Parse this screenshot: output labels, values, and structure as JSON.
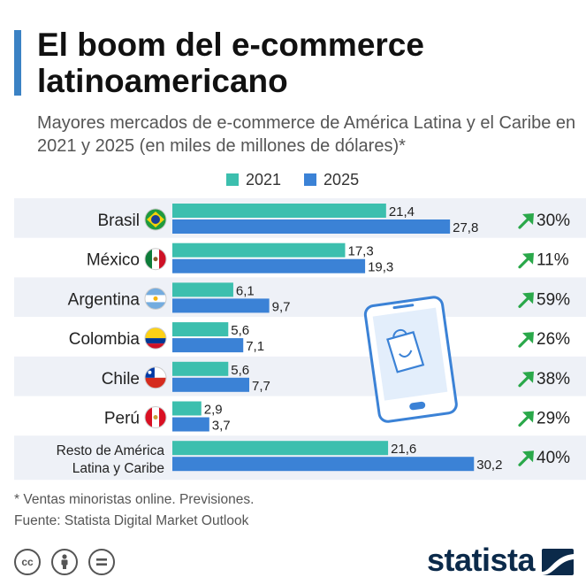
{
  "header": {
    "title": "El boom del e-commerce latinoamericano",
    "subtitle": "Mayores mercados de e-commerce de América Latina y el Caribe en 2021 y 2025 (en miles de millones de dólares)*"
  },
  "colors": {
    "series_2021": "#3cbfae",
    "series_2025": "#3b82d6",
    "row_band": "#eef1f7",
    "growth_arrow": "#2aa84a",
    "accent": "#3b82c4"
  },
  "chart_data": {
    "type": "bar",
    "orientation": "horizontal",
    "categories": [
      "Brasil",
      "México",
      "Argentina",
      "Colombia",
      "Chile",
      "Perú",
      "Resto de América Latina y Caribe"
    ],
    "series": [
      {
        "name": "2021",
        "values": [
          21.4,
          17.3,
          6.1,
          5.6,
          5.6,
          2.9,
          21.6
        ]
      },
      {
        "name": "2025",
        "values": [
          27.8,
          19.3,
          9.7,
          7.1,
          7.7,
          3.7,
          30.2
        ]
      }
    ],
    "value_labels": {
      "2021": [
        "21,4",
        "17,3",
        "6,1",
        "5,6",
        "5,6",
        "2,9",
        "21,6"
      ],
      "2025": [
        "27,8",
        "19,3",
        "9,7",
        "7,1",
        "7,7",
        "3,7",
        "30,2"
      ]
    },
    "growth": [
      "30%",
      "11%",
      "59%",
      "26%",
      "38%",
      "29%",
      "40%"
    ],
    "flags": [
      "brazil-flag-icon",
      "mexico-flag-icon",
      "argentina-flag-icon",
      "colombia-flag-icon",
      "chile-flag-icon",
      "peru-flag-icon",
      null
    ],
    "legend": {
      "placement": "top",
      "entries": [
        "2021",
        "2025"
      ]
    },
    "xlim": [
      0,
      32
    ],
    "grid": false
  },
  "footer": {
    "footnote": "* Ventas minoristas online. Previsiones.",
    "source": "Fuente: Statista Digital Market Outlook",
    "logo_text": "statista",
    "license_icons": [
      "cc-icon",
      "attribution-icon",
      "no-derivatives-icon"
    ]
  }
}
